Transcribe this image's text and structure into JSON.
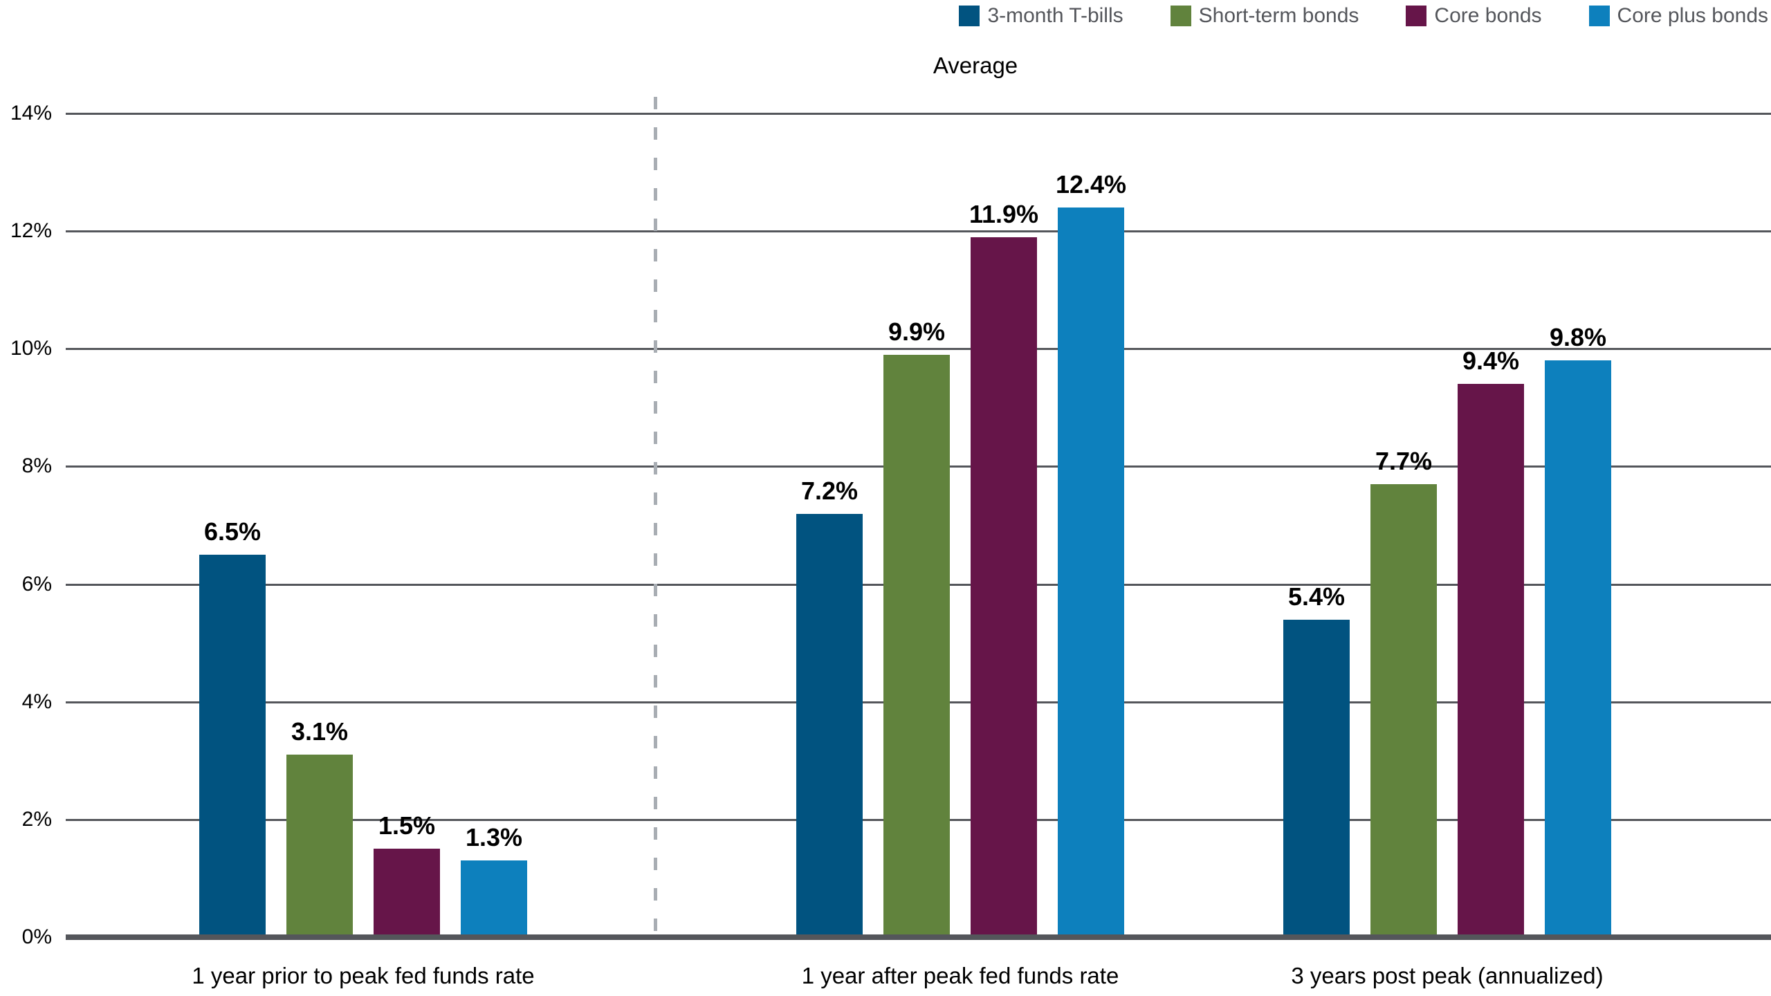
{
  "chart_data": {
    "type": "bar",
    "title": "Average",
    "categories": [
      "1 year prior to peak fed funds rate",
      "1 year after peak fed funds rate",
      "3 years post peak (annualized)"
    ],
    "series": [
      {
        "name": "3-month T-bills",
        "color": "#015380",
        "values": [
          6.5,
          7.2,
          5.4
        ],
        "labels": [
          "6.5%",
          "7.2%",
          "5.4%"
        ]
      },
      {
        "name": "Short-term bonds",
        "color": "#61833d",
        "values": [
          3.1,
          9.9,
          7.7
        ],
        "labels": [
          "3.1%",
          "9.9%",
          "7.7%"
        ]
      },
      {
        "name": "Core bonds",
        "color": "#661549",
        "values": [
          1.5,
          11.9,
          9.4
        ],
        "labels": [
          "1.5%",
          "11.9%",
          "9.4%"
        ]
      },
      {
        "name": "Core plus bonds",
        "color": "#0d80bd",
        "values": [
          1.3,
          12.4,
          9.8
        ],
        "labels": [
          "1.3%",
          "12.4%",
          "9.8%"
        ]
      }
    ],
    "ylim": [
      0,
      14
    ],
    "yticks": [
      {
        "value": 0,
        "label": "0%"
      },
      {
        "value": 2,
        "label": "2%"
      },
      {
        "value": 4,
        "label": "4%"
      },
      {
        "value": 6,
        "label": "6%"
      },
      {
        "value": 8,
        "label": "8%"
      },
      {
        "value": 10,
        "label": "10%"
      },
      {
        "value": 12,
        "label": "12%"
      },
      {
        "value": 14,
        "label": "14%"
      }
    ],
    "grid": "horizontal",
    "legend_position": "top-right",
    "axis_color": "#54565b",
    "gridline_color": "#54565b",
    "separator": {
      "style": "dashed-vertical",
      "after_category_index": 0,
      "color": "#a8adb3"
    },
    "value_labels_shown": true
  }
}
